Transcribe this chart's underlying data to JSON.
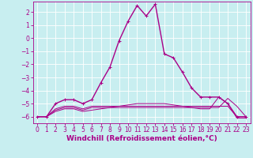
{
  "xlabel": "Windchill (Refroidissement éolien,°C)",
  "ylabel": "",
  "background_color": "#c8eef0",
  "grid_color": "#b0dde0",
  "line_color": "#aa0088",
  "x_ticks": [
    0,
    1,
    2,
    3,
    4,
    5,
    6,
    7,
    8,
    9,
    10,
    11,
    12,
    13,
    14,
    15,
    16,
    17,
    18,
    19,
    20,
    21,
    22,
    23
  ],
  "y_ticks": [
    -6,
    -5,
    -4,
    -3,
    -2,
    -1,
    0,
    1,
    2
  ],
  "ylim": [
    -6.5,
    2.8
  ],
  "xlim": [
    -0.5,
    23.5
  ],
  "lines": [
    {
      "x": [
        0,
        1,
        2,
        3,
        4,
        5,
        6,
        7,
        8,
        9,
        10,
        11,
        12,
        13,
        14,
        15,
        16,
        17,
        18,
        19,
        20,
        21,
        22,
        23
      ],
      "y": [
        -6,
        -6,
        -5,
        -4.7,
        -4.7,
        -5,
        -4.7,
        -3.4,
        -2.2,
        -0.2,
        1.3,
        2.5,
        1.7,
        2.6,
        -1.2,
        -1.5,
        -2.6,
        -3.8,
        -4.5,
        -4.5,
        -4.5,
        -5,
        -6,
        -6
      ],
      "marker": "+",
      "lw": 1.0
    },
    {
      "x": [
        0,
        1,
        2,
        3,
        4,
        5,
        6,
        7,
        8,
        9,
        10,
        11,
        12,
        13,
        14,
        15,
        16,
        17,
        18,
        19,
        20,
        21,
        22,
        23
      ],
      "y": [
        -6,
        -6,
        -5.4,
        -5.2,
        -5.2,
        -5.4,
        -5.2,
        -5.2,
        -5.2,
        -5.2,
        -5.2,
        -5.2,
        -5.2,
        -5.2,
        -5.2,
        -5.2,
        -5.2,
        -5.2,
        -5.2,
        -5.2,
        -5.2,
        -5.2,
        -6,
        -6
      ],
      "marker": null,
      "lw": 0.7
    },
    {
      "x": [
        0,
        1,
        2,
        3,
        4,
        5,
        6,
        7,
        8,
        9,
        10,
        11,
        12,
        13,
        14,
        15,
        16,
        17,
        18,
        19,
        20,
        21,
        22,
        23
      ],
      "y": [
        -6,
        -6,
        -5.5,
        -5.3,
        -5.3,
        -5.5,
        -5.3,
        -5.3,
        -5.3,
        -5.3,
        -5.3,
        -5.3,
        -5.3,
        -5.3,
        -5.3,
        -5.3,
        -5.3,
        -5.3,
        -5.3,
        -5.3,
        -5.3,
        -4.6,
        -5.2,
        -6
      ],
      "marker": null,
      "lw": 0.7
    },
    {
      "x": [
        0,
        1,
        2,
        3,
        4,
        5,
        6,
        7,
        8,
        9,
        10,
        11,
        12,
        13,
        14,
        15,
        16,
        17,
        18,
        19,
        20,
        21,
        22,
        23
      ],
      "y": [
        -6,
        -6,
        -5.6,
        -5.4,
        -5.4,
        -5.6,
        -5.5,
        -5.4,
        -5.3,
        -5.2,
        -5.1,
        -5.0,
        -5.0,
        -5.0,
        -5.0,
        -5.1,
        -5.2,
        -5.3,
        -5.4,
        -5.4,
        -4.5,
        -5.0,
        -6.1,
        -6.1
      ],
      "marker": null,
      "lw": 0.7
    }
  ],
  "tick_fontsize": 5.5,
  "label_fontsize": 6.5
}
